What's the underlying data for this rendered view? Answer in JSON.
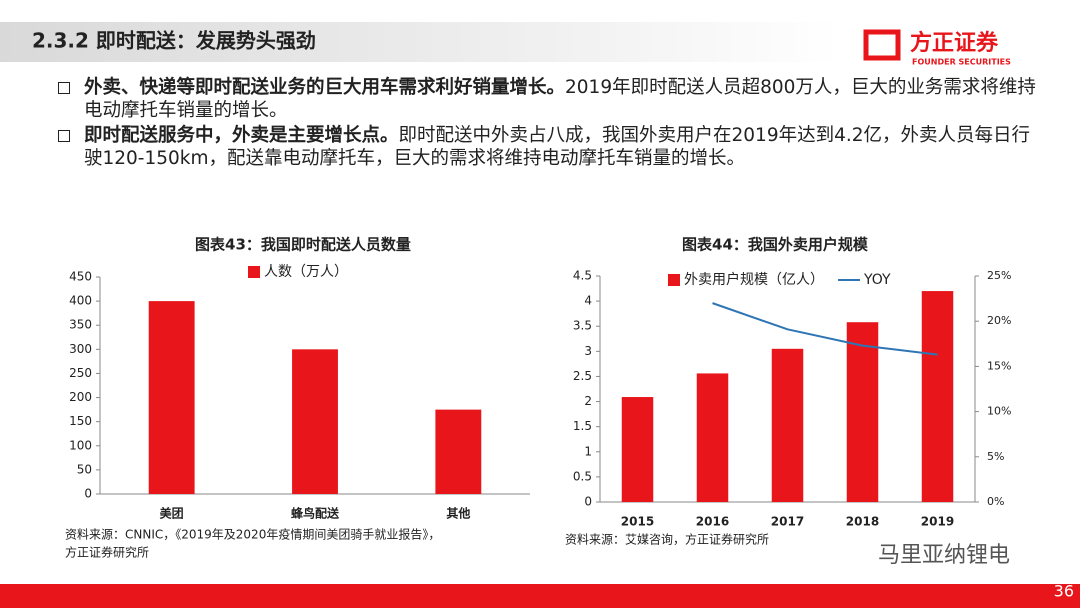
{
  "header": {
    "title": "2.3.2 即时配送：发展势头强劲",
    "logo": "方正证券",
    "logo_sub": "FOUNDER SECURITIES"
  },
  "bullets": [
    {
      "bold": "外卖、快递等即时配送业务的巨大用车需求利好销量增长。",
      "text": "2019年即时配送人员超800万人，巨大的业务需求将维持电动摩托车销量的增长。"
    },
    {
      "bold": "即时配送服务中，外卖是主要增长点。",
      "text": "即时配送中外卖占八成，我国外卖用户在2019年达到4.2亿，外卖人员每日行驶120-150km，配送靠电动摩托车，巨大的需求将维持电动摩托车销量的增长。"
    }
  ],
  "chart_data": [
    {
      "type": "bar",
      "title": "图表43：我国即时配送人员数量",
      "categories": [
        "美团",
        "蜂鸟配送",
        "其他"
      ],
      "series": [
        {
          "name": "人数（万人）",
          "color": "#e8161b",
          "values": [
            400,
            300,
            175
          ]
        }
      ],
      "ylim": [
        0,
        450
      ],
      "yticks": [
        0,
        50,
        100,
        150,
        200,
        250,
        300,
        350,
        400,
        450
      ],
      "legend": "top",
      "source": "资料来源：CNNIC，《2019年及2020年疫情期间美团骑手就业报告》，",
      "source2": "方正证券研究所"
    },
    {
      "type": "bar",
      "title": "图表44：我国外卖用户规模",
      "categories": [
        "2015",
        "2016",
        "2017",
        "2018",
        "2019"
      ],
      "series": [
        {
          "name": "外卖用户规模（亿人）",
          "color": "#e8161b",
          "values": [
            2.09,
            2.56,
            3.05,
            3.58,
            4.2
          ]
        },
        {
          "name": "YOY",
          "color": "#2e75b6",
          "type": "line",
          "axis": "y2",
          "values": [
            null,
            22.0,
            19.1,
            17.3,
            16.3
          ]
        }
      ],
      "ylim": [
        0,
        4.5
      ],
      "yticks": [
        0,
        0.5,
        1,
        1.5,
        2,
        2.5,
        3,
        3.5,
        4,
        4.5
      ],
      "y2lim": [
        0,
        25
      ],
      "y2ticks": [
        {
          "value": 0,
          "label": "0%"
        },
        {
          "value": 5,
          "label": "5%"
        },
        {
          "value": 10,
          "label": "10%"
        },
        {
          "value": 15,
          "label": "15%"
        },
        {
          "value": 20,
          "label": "20%"
        },
        {
          "value": 25,
          "label": "25%"
        }
      ],
      "legend": "top",
      "source": "资料来源：艾媒咨询，方正证券研究所"
    }
  ],
  "watermark": "马里亚纳锂电",
  "page": "36"
}
